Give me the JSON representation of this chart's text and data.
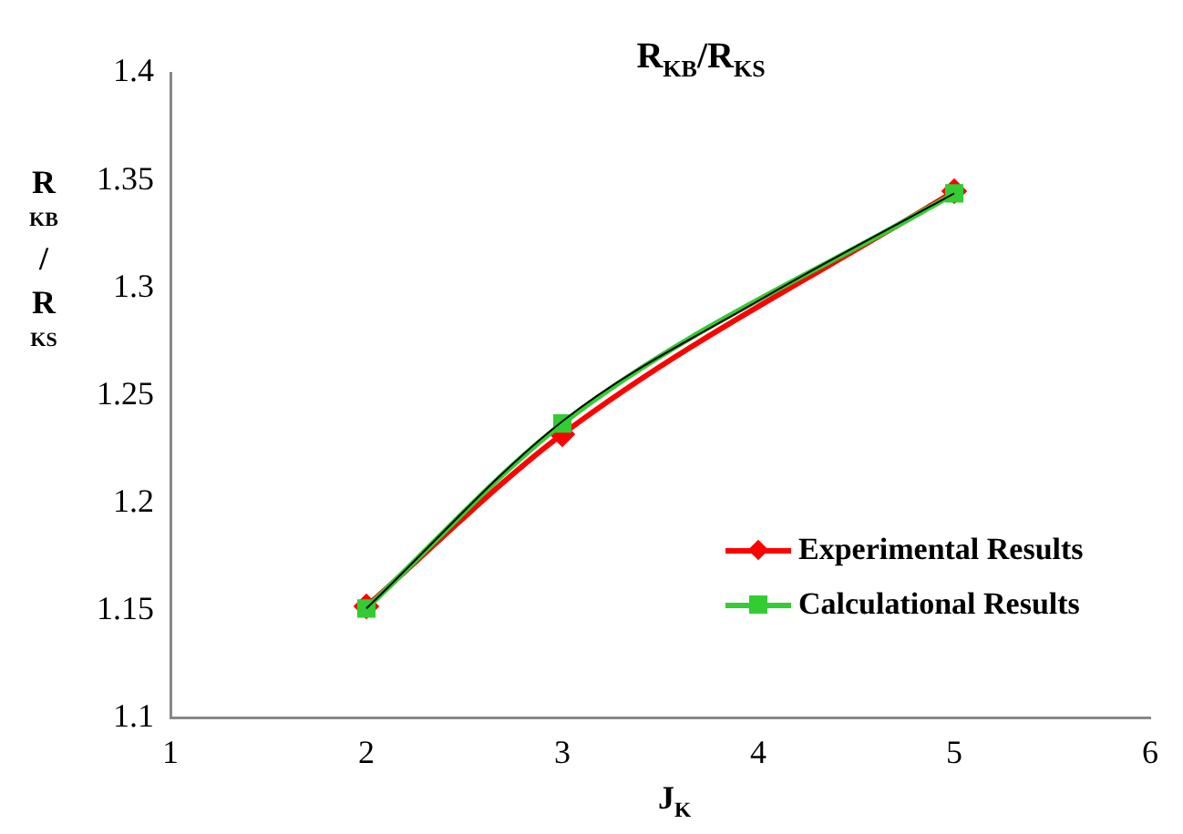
{
  "chart_data": {
    "type": "line",
    "title": "R$_{KB}$/R$_{KS}$",
    "xlabel": "J$_{K}$",
    "ylabel": "R$_{KB}$/R$_{KS}$",
    "xlim": [
      1,
      6
    ],
    "xticks": [
      1,
      2,
      3,
      4,
      5,
      6
    ],
    "ylim": [
      1.1,
      1.4
    ],
    "yticks": [
      1.1,
      1.15,
      1.2,
      1.25,
      1.3,
      1.35,
      1.4
    ],
    "grid": false,
    "legend": "right",
    "line_style": "solid",
    "series": [
      {
        "type": "line",
        "color": "#000000",
        "x": [
          2,
          3,
          4,
          5
        ],
        "values": [
          1.151,
          1.238,
          1.294,
          1.344
        ],
        "marker": "none"
      },
      {
        "name": "Experimental Results",
        "color": "#ff0000",
        "x": [
          2,
          3,
          5
        ],
        "values": [
          1.152,
          1.232,
          1.345
        ],
        "marker": "diamond"
      },
      {
        "name": "Calculational Results",
        "color": "#33cc33",
        "x": [
          2,
          3,
          5
        ],
        "values": [
          1.151,
          1.237,
          1.344
        ],
        "marker": "square"
      }
    ]
  }
}
